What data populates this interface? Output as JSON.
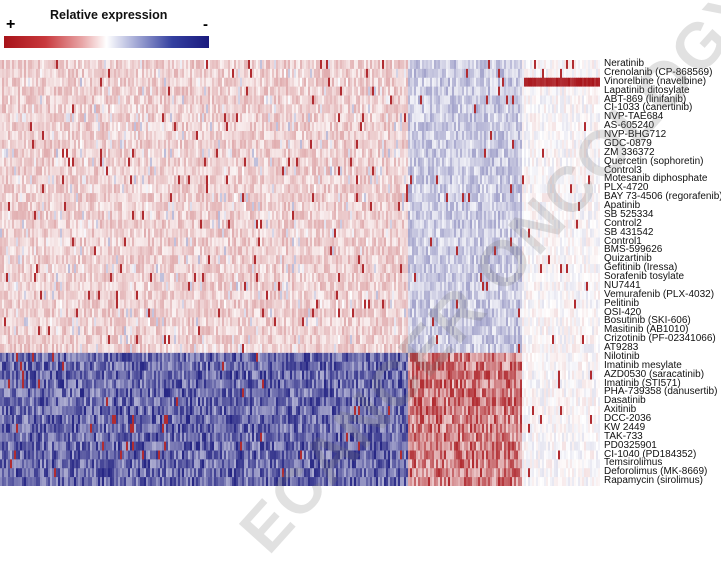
{
  "chart_data": {
    "type": "heatmap",
    "legend": {
      "title": "Relative expression",
      "high_symbol": "+",
      "low_symbol": "-",
      "colors": [
        "#a8141a",
        "#e8a5a6",
        "#ffffff",
        "#b3b8dd",
        "#1a1a7e"
      ],
      "placement": "top-left"
    },
    "rows": [
      "Neratinib",
      "Crenolanib (CP-868569)",
      "Vinorelbine (navelbine)",
      "Lapatinib ditosylate",
      "ABT-869 (linifanib)",
      "CI-1033 (canertinib)",
      "NVP-TAE684",
      "AS-605240",
      "NVP-BHG712",
      "GDC-0879",
      "ZM 336372",
      "Quercetin (sophoretin)",
      "Control3",
      "Motesanib diphosphate",
      "PLX-4720",
      "BAY 73-4506 (regorafenib)",
      "Apatinib",
      "SB 525334",
      "Control2",
      "SB 431542",
      "Control1",
      "BMS-599626",
      "Quizartinib",
      "Gefitinib (Iressa)",
      "Sorafenib tosylate",
      "NU7441",
      "Vemurafenib (PLX-4032)",
      "Pelitinib",
      "OSI-420",
      "Bosutinib (SKI-606)",
      "Masitinib (AB1010)",
      "Crizotinib (PF-02341066)",
      "AT9283",
      "Nilotinib",
      "Imatinib mesylate",
      "AZD0530 (saracatinib)",
      "Imatinib (STI571)",
      "PHA-739358 (danusertib)",
      "Dasatinib",
      "Axitinib",
      "DCC-2036",
      "KW 2449",
      "TAK-733",
      "PD0325901",
      "CI-1040 (PD184352)",
      "Temsirolimus",
      "Deforolimus (MK-8669)",
      "Rapamycin (sirolimus)"
    ],
    "columns_approx": 300,
    "column_bands": [
      "left block",
      "middle block",
      "right block"
    ],
    "pattern": {
      "rows_top_block": "rows 1-33 mostly light red in left block, light blue in middle block",
      "rows_bottom_block": "rows 34-48 strong blue in left block, strong red in middle block",
      "row_3_note": "Vinorelbine shows strong red stripe in right block"
    }
  },
  "watermark": {
    "text": "ECANCER ONCOLOGY"
  }
}
